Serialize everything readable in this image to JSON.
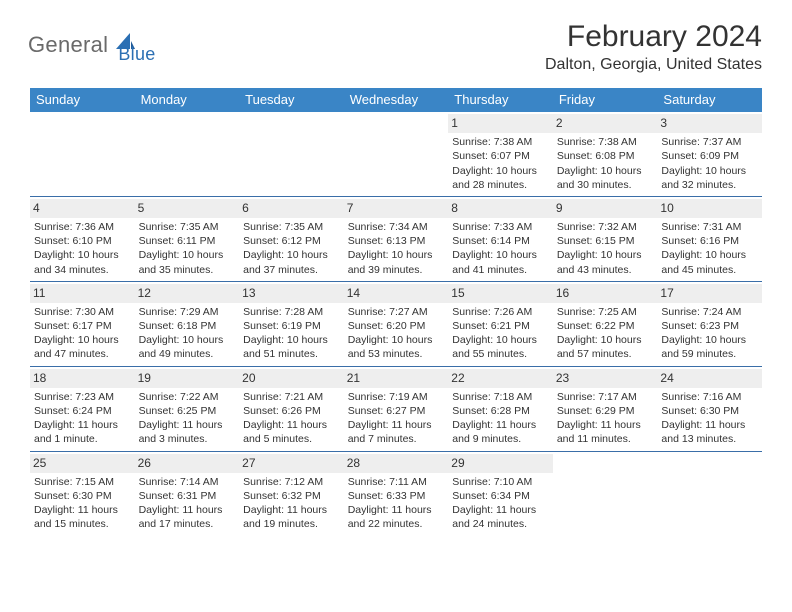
{
  "logo": {
    "general": "General",
    "blue": "Blue"
  },
  "title": "February 2024",
  "location": "Dalton, Georgia, United States",
  "colors": {
    "header_bg": "#3a85c6",
    "header_text": "#ffffff",
    "day_num_bg": "#eeeeee",
    "week_border": "#3a6ea8",
    "logo_general": "#6a6a6a",
    "logo_blue": "#2b6fb3",
    "body_text": "#333333"
  },
  "day_headers": [
    "Sunday",
    "Monday",
    "Tuesday",
    "Wednesday",
    "Thursday",
    "Friday",
    "Saturday"
  ],
  "weeks": [
    [
      null,
      null,
      null,
      null,
      {
        "num": "1",
        "sunrise": "Sunrise: 7:38 AM",
        "sunset": "Sunset: 6:07 PM",
        "daylight": "Daylight: 10 hours and 28 minutes."
      },
      {
        "num": "2",
        "sunrise": "Sunrise: 7:38 AM",
        "sunset": "Sunset: 6:08 PM",
        "daylight": "Daylight: 10 hours and 30 minutes."
      },
      {
        "num": "3",
        "sunrise": "Sunrise: 7:37 AM",
        "sunset": "Sunset: 6:09 PM",
        "daylight": "Daylight: 10 hours and 32 minutes."
      }
    ],
    [
      {
        "num": "4",
        "sunrise": "Sunrise: 7:36 AM",
        "sunset": "Sunset: 6:10 PM",
        "daylight": "Daylight: 10 hours and 34 minutes."
      },
      {
        "num": "5",
        "sunrise": "Sunrise: 7:35 AM",
        "sunset": "Sunset: 6:11 PM",
        "daylight": "Daylight: 10 hours and 35 minutes."
      },
      {
        "num": "6",
        "sunrise": "Sunrise: 7:35 AM",
        "sunset": "Sunset: 6:12 PM",
        "daylight": "Daylight: 10 hours and 37 minutes."
      },
      {
        "num": "7",
        "sunrise": "Sunrise: 7:34 AM",
        "sunset": "Sunset: 6:13 PM",
        "daylight": "Daylight: 10 hours and 39 minutes."
      },
      {
        "num": "8",
        "sunrise": "Sunrise: 7:33 AM",
        "sunset": "Sunset: 6:14 PM",
        "daylight": "Daylight: 10 hours and 41 minutes."
      },
      {
        "num": "9",
        "sunrise": "Sunrise: 7:32 AM",
        "sunset": "Sunset: 6:15 PM",
        "daylight": "Daylight: 10 hours and 43 minutes."
      },
      {
        "num": "10",
        "sunrise": "Sunrise: 7:31 AM",
        "sunset": "Sunset: 6:16 PM",
        "daylight": "Daylight: 10 hours and 45 minutes."
      }
    ],
    [
      {
        "num": "11",
        "sunrise": "Sunrise: 7:30 AM",
        "sunset": "Sunset: 6:17 PM",
        "daylight": "Daylight: 10 hours and 47 minutes."
      },
      {
        "num": "12",
        "sunrise": "Sunrise: 7:29 AM",
        "sunset": "Sunset: 6:18 PM",
        "daylight": "Daylight: 10 hours and 49 minutes."
      },
      {
        "num": "13",
        "sunrise": "Sunrise: 7:28 AM",
        "sunset": "Sunset: 6:19 PM",
        "daylight": "Daylight: 10 hours and 51 minutes."
      },
      {
        "num": "14",
        "sunrise": "Sunrise: 7:27 AM",
        "sunset": "Sunset: 6:20 PM",
        "daylight": "Daylight: 10 hours and 53 minutes."
      },
      {
        "num": "15",
        "sunrise": "Sunrise: 7:26 AM",
        "sunset": "Sunset: 6:21 PM",
        "daylight": "Daylight: 10 hours and 55 minutes."
      },
      {
        "num": "16",
        "sunrise": "Sunrise: 7:25 AM",
        "sunset": "Sunset: 6:22 PM",
        "daylight": "Daylight: 10 hours and 57 minutes."
      },
      {
        "num": "17",
        "sunrise": "Sunrise: 7:24 AM",
        "sunset": "Sunset: 6:23 PM",
        "daylight": "Daylight: 10 hours and 59 minutes."
      }
    ],
    [
      {
        "num": "18",
        "sunrise": "Sunrise: 7:23 AM",
        "sunset": "Sunset: 6:24 PM",
        "daylight": "Daylight: 11 hours and 1 minute."
      },
      {
        "num": "19",
        "sunrise": "Sunrise: 7:22 AM",
        "sunset": "Sunset: 6:25 PM",
        "daylight": "Daylight: 11 hours and 3 minutes."
      },
      {
        "num": "20",
        "sunrise": "Sunrise: 7:21 AM",
        "sunset": "Sunset: 6:26 PM",
        "daylight": "Daylight: 11 hours and 5 minutes."
      },
      {
        "num": "21",
        "sunrise": "Sunrise: 7:19 AM",
        "sunset": "Sunset: 6:27 PM",
        "daylight": "Daylight: 11 hours and 7 minutes."
      },
      {
        "num": "22",
        "sunrise": "Sunrise: 7:18 AM",
        "sunset": "Sunset: 6:28 PM",
        "daylight": "Daylight: 11 hours and 9 minutes."
      },
      {
        "num": "23",
        "sunrise": "Sunrise: 7:17 AM",
        "sunset": "Sunset: 6:29 PM",
        "daylight": "Daylight: 11 hours and 11 minutes."
      },
      {
        "num": "24",
        "sunrise": "Sunrise: 7:16 AM",
        "sunset": "Sunset: 6:30 PM",
        "daylight": "Daylight: 11 hours and 13 minutes."
      }
    ],
    [
      {
        "num": "25",
        "sunrise": "Sunrise: 7:15 AM",
        "sunset": "Sunset: 6:30 PM",
        "daylight": "Daylight: 11 hours and 15 minutes."
      },
      {
        "num": "26",
        "sunrise": "Sunrise: 7:14 AM",
        "sunset": "Sunset: 6:31 PM",
        "daylight": "Daylight: 11 hours and 17 minutes."
      },
      {
        "num": "27",
        "sunrise": "Sunrise: 7:12 AM",
        "sunset": "Sunset: 6:32 PM",
        "daylight": "Daylight: 11 hours and 19 minutes."
      },
      {
        "num": "28",
        "sunrise": "Sunrise: 7:11 AM",
        "sunset": "Sunset: 6:33 PM",
        "daylight": "Daylight: 11 hours and 22 minutes."
      },
      {
        "num": "29",
        "sunrise": "Sunrise: 7:10 AM",
        "sunset": "Sunset: 6:34 PM",
        "daylight": "Daylight: 11 hours and 24 minutes."
      },
      null,
      null
    ]
  ]
}
